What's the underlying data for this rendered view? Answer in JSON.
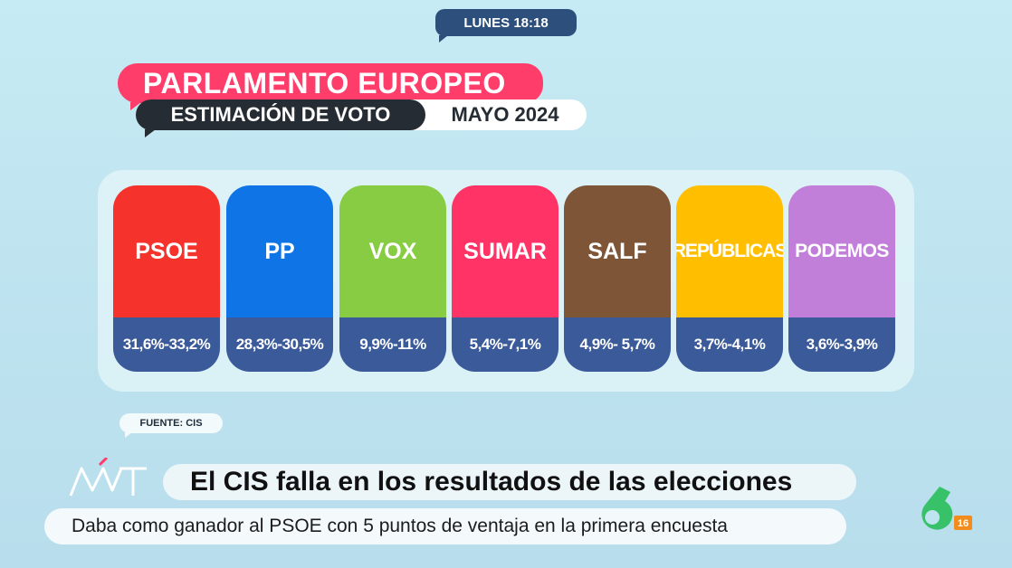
{
  "header": {
    "time_label": "LUNES 18:18"
  },
  "title": {
    "main": "PARLAMENTO EUROPEO",
    "sub": "ESTIMACIÓN DE VOTO",
    "date": "MAYO 2024"
  },
  "parties": [
    {
      "name": "PSOE",
      "range": "31,6%-33,2%",
      "color": "#f5332c"
    },
    {
      "name": "PP",
      "range": "28,3%-30,5%",
      "color": "#0f75e6"
    },
    {
      "name": "VOX",
      "range": "9,9%-11%",
      "color": "#88cc44"
    },
    {
      "name": "SUMAR",
      "range": "5,4%-7,1%",
      "color": "#ff3366"
    },
    {
      "name": "SALF",
      "range": "4,9%- 5,7%",
      "color": "#7f5538"
    },
    {
      "name": "REPÚBLICAS",
      "range": "3,7%-4,1%",
      "color": "#ffbf00"
    },
    {
      "name": "PODEMOS",
      "range": "3,6%-3,9%",
      "color": "#c27fd9"
    }
  ],
  "source": "FUENTE: CIS",
  "news": {
    "show_logo": "MVT",
    "headline": "El CIS falla en los resultados de las elecciones",
    "subheadline": "Daba como ganador al PSOE con 5 puntos de ventaja en la primera encuesta"
  },
  "channel": {
    "logo_icon": "la-sexta-logo",
    "rating": "16"
  },
  "colors": {
    "accent_pink": "#ff3d6b",
    "dark": "#262c33",
    "range_band": "#3a5a99",
    "channel_green": "#37c26a"
  }
}
